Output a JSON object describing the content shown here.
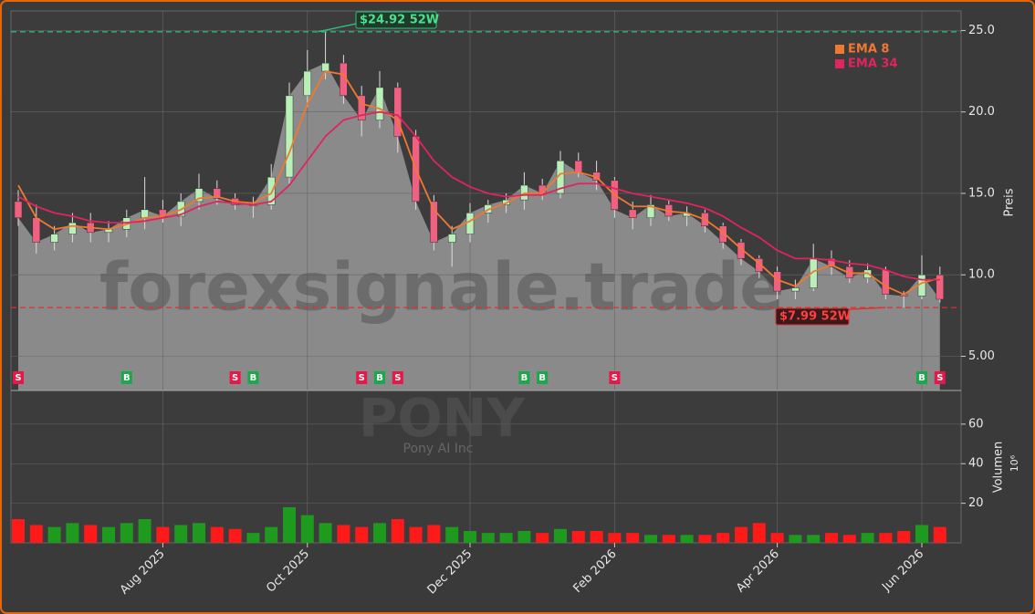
{
  "chart_data": {
    "type": "candlestick",
    "title": "PONY",
    "subtitle": "Pony AI Inc",
    "watermark": "forexsignale.trade",
    "categories": [
      null,
      null,
      null,
      null,
      null,
      null,
      null,
      null,
      "Aug 2025",
      null,
      null,
      null,
      null,
      null,
      null,
      null,
      "Oct 2025",
      null,
      null,
      null,
      null,
      null,
      null,
      null,
      null,
      "Dec 2025",
      null,
      null,
      null,
      null,
      null,
      null,
      null,
      "Feb 2026",
      null,
      null,
      null,
      null,
      null,
      null,
      null,
      null,
      "Apr 2026",
      null,
      null,
      null,
      null,
      null,
      null,
      null,
      "Jun 2026",
      null
    ],
    "open": [
      14.5,
      13.5,
      12.0,
      12.5,
      13.2,
      12.6,
      12.8,
      13.5,
      14.0,
      13.6,
      14.5,
      15.3,
      14.7,
      14.3,
      14.3,
      16.0,
      21.0,
      22.5,
      23.0,
      21.0,
      19.5,
      21.5,
      18.5,
      14.5,
      12.0,
      12.5,
      13.8,
      14.3,
      14.6,
      15.5,
      15.0,
      17.0,
      16.3,
      15.8,
      14.0,
      13.5,
      14.3,
      13.6,
      13.8,
      13.0,
      12.0,
      11.0,
      10.2,
      9.0,
      9.2,
      11.0,
      10.5,
      9.8,
      10.3,
      8.8,
      8.7,
      10.0
    ],
    "high": [
      15.2,
      14.3,
      13.0,
      13.8,
      13.8,
      13.3,
      14.0,
      16.0,
      14.6,
      15.0,
      16.2,
      15.8,
      15.0,
      14.8,
      16.8,
      21.8,
      23.8,
      24.92,
      23.5,
      21.6,
      22.5,
      21.8,
      18.9,
      14.9,
      13.0,
      14.4,
      14.6,
      15.0,
      16.3,
      15.9,
      17.6,
      17.5,
      17.0,
      16.0,
      14.5,
      14.9,
      14.6,
      14.2,
      14.0,
      13.2,
      12.2,
      11.2,
      10.5,
      9.7,
      11.9,
      11.5,
      10.9,
      10.7,
      10.5,
      9.0,
      11.2,
      10.5
    ],
    "low": [
      13.0,
      11.3,
      11.5,
      12.0,
      12.0,
      12.0,
      12.3,
      12.8,
      13.2,
      13.0,
      14.0,
      14.3,
      14.0,
      13.5,
      14.0,
      15.6,
      20.3,
      22.0,
      20.5,
      18.5,
      19.0,
      17.5,
      14.0,
      11.5,
      10.5,
      12.0,
      13.2,
      13.8,
      14.0,
      14.6,
      14.7,
      16.0,
      15.2,
      13.5,
      12.8,
      13.0,
      13.3,
      13.0,
      12.6,
      11.6,
      10.6,
      9.8,
      8.5,
      8.5,
      9.0,
      10.0,
      9.5,
      9.5,
      8.5,
      7.99,
      8.5,
      8.3
    ],
    "close": [
      13.5,
      12.0,
      12.5,
      13.2,
      12.6,
      12.8,
      13.5,
      14.0,
      13.6,
      14.5,
      15.3,
      14.7,
      14.3,
      14.3,
      16.0,
      21.0,
      22.5,
      23.0,
      21.0,
      19.5,
      21.5,
      18.5,
      14.5,
      12.0,
      12.5,
      13.8,
      14.3,
      14.6,
      15.5,
      15.0,
      17.0,
      16.3,
      15.8,
      14.0,
      13.5,
      14.3,
      13.6,
      13.8,
      13.0,
      12.0,
      11.0,
      10.2,
      9.0,
      9.2,
      11.0,
      10.5,
      9.8,
      10.3,
      8.8,
      8.7,
      10.0,
      8.5
    ],
    "up_color": "#b8f0b8",
    "down_color": "#f06080",
    "area_color": "#8a8a8a",
    "series": [
      {
        "name": "EMA 8",
        "color": "#f07830",
        "values": [
          15.5,
          13.5,
          12.8,
          13.0,
          12.9,
          12.8,
          13.1,
          13.5,
          13.6,
          14.0,
          14.7,
          14.8,
          14.5,
          14.4,
          15.0,
          17.5,
          20.5,
          22.5,
          22.3,
          20.5,
          20.2,
          19.5,
          16.5,
          14.0,
          12.8,
          13.3,
          14.0,
          14.4,
          15.0,
          15.0,
          16.2,
          16.3,
          16.0,
          14.9,
          14.2,
          14.2,
          13.9,
          13.8,
          13.4,
          12.6,
          11.6,
          10.7,
          9.7,
          9.3,
          10.2,
          10.6,
          10.1,
          10.1,
          9.3,
          8.8,
          9.5,
          9.8
        ]
      },
      {
        "name": "EMA 34",
        "color": "#e0245e",
        "values": [
          14.8,
          14.2,
          13.8,
          13.6,
          13.3,
          13.2,
          13.2,
          13.3,
          13.5,
          13.7,
          14.2,
          14.5,
          14.4,
          14.3,
          14.5,
          15.5,
          17.0,
          18.5,
          19.5,
          19.8,
          20.0,
          19.8,
          18.5,
          17.0,
          16.0,
          15.4,
          15.0,
          14.8,
          14.9,
          14.9,
          15.3,
          15.6,
          15.6,
          15.3,
          15.0,
          14.8,
          14.6,
          14.4,
          14.1,
          13.6,
          12.9,
          12.3,
          11.5,
          11.0,
          11.0,
          10.9,
          10.7,
          10.6,
          10.3,
          9.9,
          9.7,
          9.7
        ]
      }
    ],
    "legend": "upper right",
    "ylim": [
      2.9,
      26.2
    ],
    "yticks": [
      {
        "value": 5,
        "label": "5.00"
      },
      {
        "value": 10,
        "label": "10.0"
      },
      {
        "value": 15,
        "label": "15.0"
      },
      {
        "value": 20,
        "label": "20.0"
      },
      {
        "value": 25,
        "label": "25.0"
      }
    ],
    "y_label": "Preis",
    "grid": true,
    "volume": [
      12,
      9,
      8,
      10,
      9,
      8,
      10,
      12,
      8,
      9,
      10,
      8,
      7,
      5,
      8,
      18,
      14,
      10,
      9,
      8,
      10,
      12,
      8,
      9,
      8,
      6,
      5,
      5,
      6,
      5,
      7,
      6,
      6,
      5,
      5,
      4,
      4,
      4,
      4,
      5,
      8,
      10,
      5,
      4,
      4,
      5,
      4,
      5,
      5,
      6,
      9,
      8
    ],
    "volume_up_color": "#1e9a1e",
    "volume_down_color": "#ff1a1a",
    "volume_ylim": [
      0,
      77
    ],
    "volume_yticks": [
      20,
      40,
      60
    ],
    "volume_label": "Volumen",
    "volume_unit": "10⁶",
    "annotations": [
      {
        "x": 17,
        "value": 24.92,
        "label": "$24.92 52W",
        "color": "#2ec27e"
      },
      {
        "x": 49,
        "value": 7.99,
        "label": "$7.99 52W",
        "color": "#e03030"
      }
    ],
    "signals": [
      {
        "x": 0,
        "label": "S",
        "color": "#e8174a"
      },
      {
        "x": 6,
        "label": "B",
        "color": "#1aa84a"
      },
      {
        "x": 12,
        "label": "S",
        "color": "#e8174a"
      },
      {
        "x": 13,
        "label": "B",
        "color": "#1aa84a"
      },
      {
        "x": 19,
        "label": "S",
        "color": "#e8174a"
      },
      {
        "x": 20,
        "label": "B",
        "color": "#1aa84a"
      },
      {
        "x": 21,
        "label": "S",
        "color": "#e8174a"
      },
      {
        "x": 28,
        "label": "B",
        "color": "#1aa84a"
      },
      {
        "x": 29,
        "label": "B",
        "color": "#1aa84a"
      },
      {
        "x": 33,
        "label": "S",
        "color": "#e8174a"
      },
      {
        "x": 50,
        "label": "B",
        "color": "#1aa84a"
      },
      {
        "x": 51,
        "label": "S",
        "color": "#e8174a"
      }
    ]
  }
}
